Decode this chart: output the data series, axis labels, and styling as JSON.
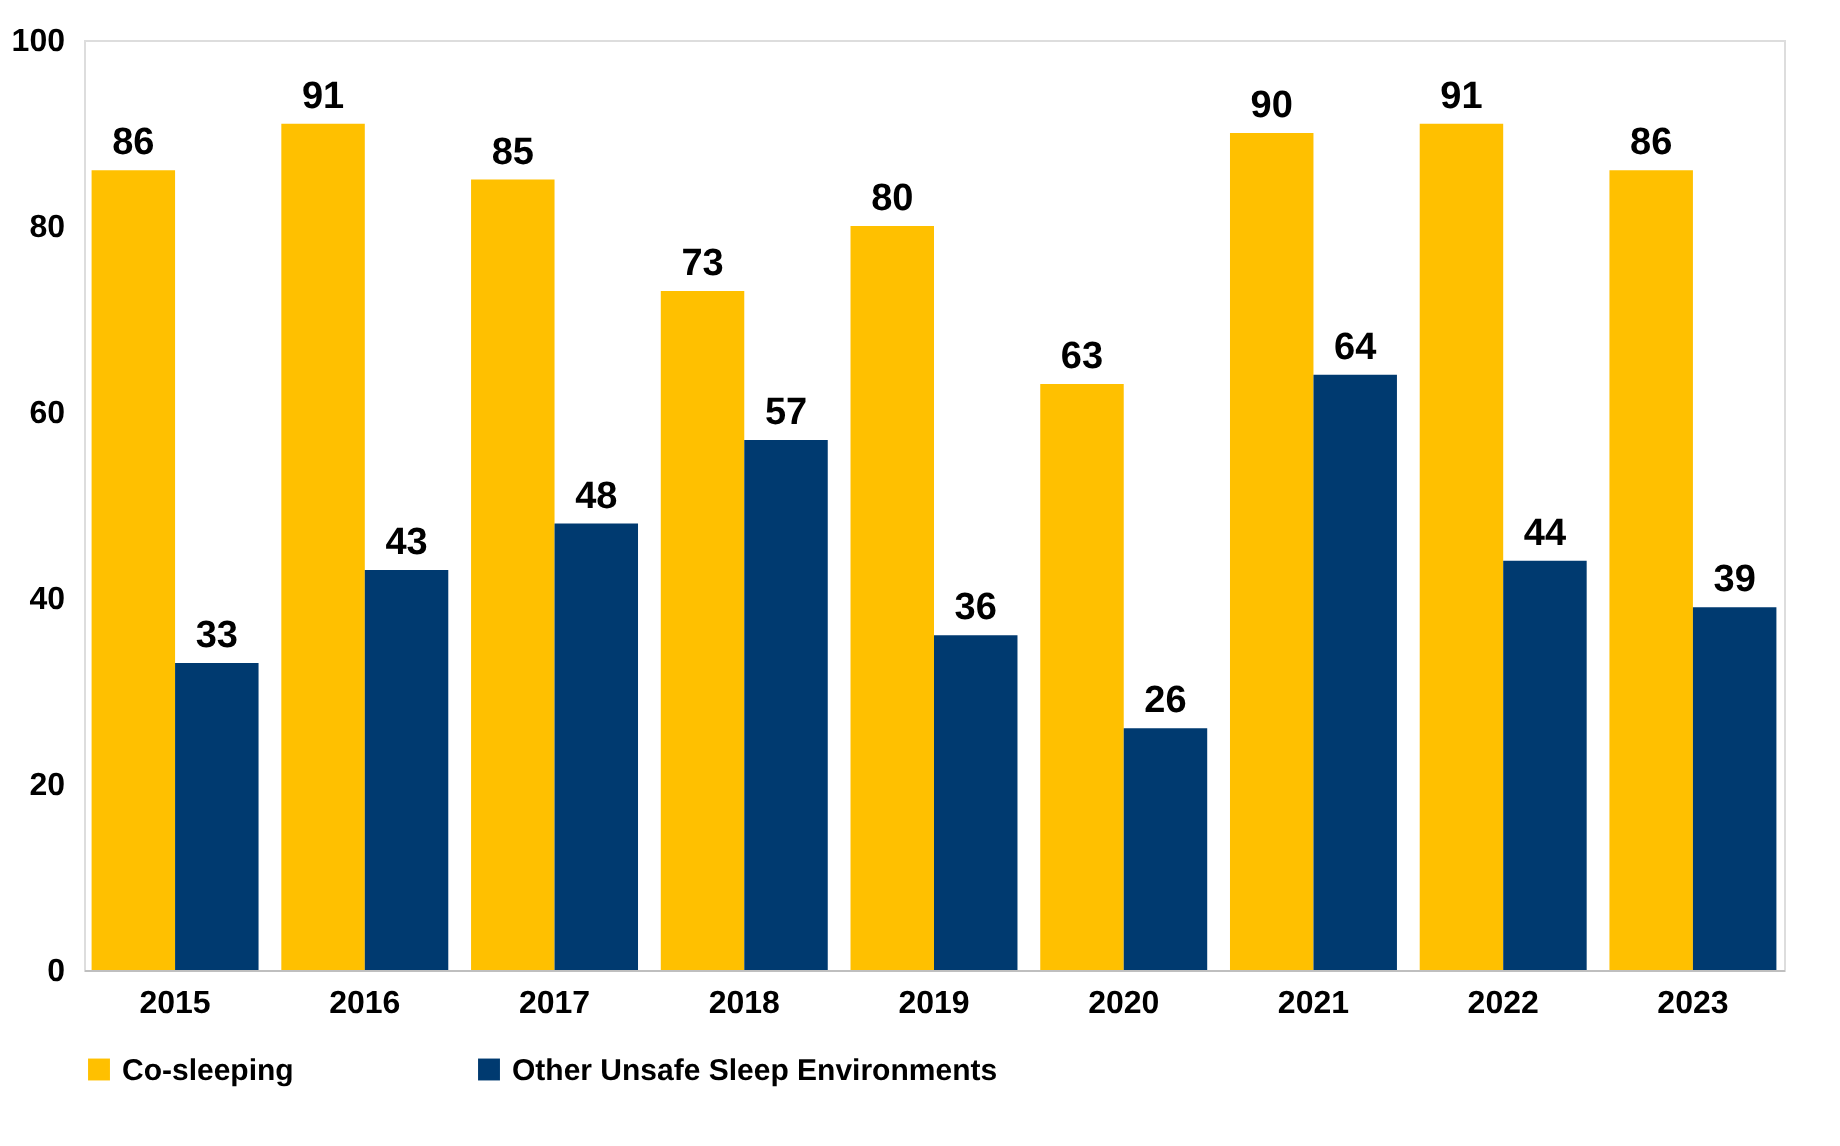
{
  "chart_data": {
    "type": "bar",
    "categories": [
      "2015",
      "2016",
      "2017",
      "2018",
      "2019",
      "2020",
      "2021",
      "2022",
      "2023"
    ],
    "series": [
      {
        "name": "Co-sleeping",
        "color": "#ffc000",
        "values": [
          86,
          91,
          85,
          73,
          80,
          63,
          90,
          91,
          86
        ]
      },
      {
        "name": "Other Unsafe Sleep Environments",
        "color": "#003a70",
        "values": [
          33,
          43,
          48,
          57,
          36,
          26,
          64,
          44,
          39
        ]
      }
    ],
    "ylim": [
      0,
      100
    ],
    "yticks": [
      0,
      20,
      40,
      60,
      80,
      100
    ],
    "grid": false,
    "legend": "bottom",
    "data_labels": true
  }
}
